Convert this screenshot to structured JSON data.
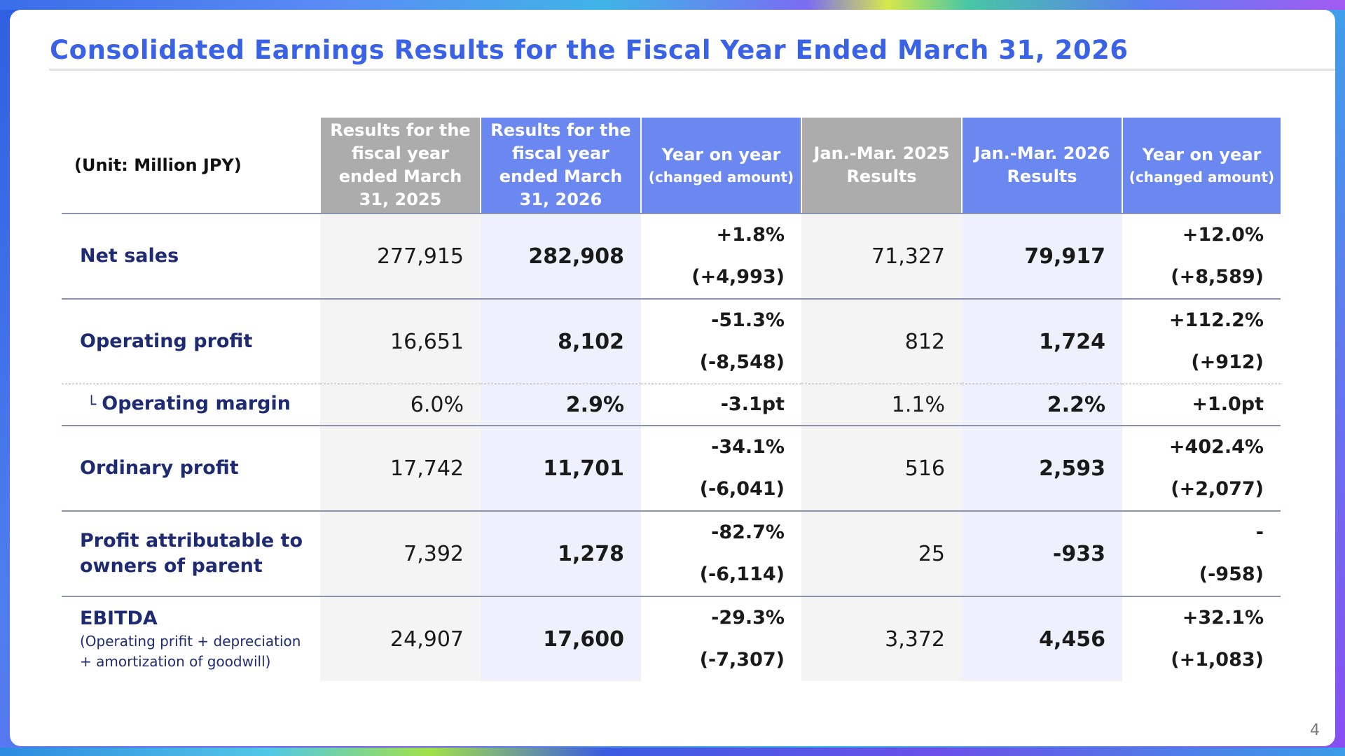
{
  "title": "Consolidated Earnings Results for the Fiscal Year Ended March 31, 2026",
  "page_number": "4",
  "colors": {
    "title": "#3a62e6",
    "header_gray": "#acacac",
    "header_blue": "#6b87f0",
    "label_text": "#1e2b73"
  },
  "table": {
    "unit_label": "(Unit: Million JPY)",
    "headers": [
      {
        "main": "Results for the fiscal year ended March 31, 2025",
        "sub": ""
      },
      {
        "main": "Results for the fiscal year ended March 31, 2026",
        "sub": ""
      },
      {
        "main": "Year on year",
        "sub": "(changed amount)"
      },
      {
        "main": "Jan.-Mar. 2025 Results",
        "sub": ""
      },
      {
        "main": "Jan.-Mar. 2026 Results",
        "sub": ""
      },
      {
        "main": "Year on year",
        "sub": "(changed amount)"
      }
    ],
    "rows": [
      {
        "label": "Net sales",
        "note": "",
        "fy2025": "277,915",
        "fy2026": "282,908",
        "yoy_pct": "+1.8%",
        "yoy_amt": "(+4,993)",
        "q2025": "71,327",
        "q2026": "79,917",
        "q_yoy_pct": "+12.0%",
        "q_yoy_amt": "(+8,589)"
      },
      {
        "label": "Operating profit",
        "note": "",
        "fy2025": "16,651",
        "fy2026": "8,102",
        "yoy_pct": "-51.3%",
        "yoy_amt": "(-8,548)",
        "q2025": "812",
        "q2026": "1,724",
        "q_yoy_pct": "+112.2%",
        "q_yoy_amt": "(+912)"
      },
      {
        "label": "Operating margin",
        "branch": "└",
        "fy2025": "6.0%",
        "fy2026": "2.9%",
        "yoy": "-3.1pt",
        "q2025": "1.1%",
        "q2026": "2.2%",
        "q_yoy": "+1.0pt"
      },
      {
        "label": "Ordinary profit",
        "note": "",
        "fy2025": "17,742",
        "fy2026": "11,701",
        "yoy_pct": "-34.1%",
        "yoy_amt": "(-6,041)",
        "q2025": "516",
        "q2026": "2,593",
        "q_yoy_pct": "+402.4%",
        "q_yoy_amt": "(+2,077)"
      },
      {
        "label": "Profit attributable to owners of parent",
        "note": "",
        "fy2025": "7,392",
        "fy2026": "1,278",
        "yoy_pct": "-82.7%",
        "yoy_amt": "(-6,114)",
        "q2025": "25",
        "q2026": "-933",
        "q_yoy_pct": "-",
        "q_yoy_amt": "(-958)"
      },
      {
        "label": "EBITDA",
        "note": "(Operating prifit + depreciation + amortization of goodwill)",
        "fy2025": "24,907",
        "fy2026": "17,600",
        "yoy_pct": "-29.3%",
        "yoy_amt": "(-7,307)",
        "q2025": "3,372",
        "q2026": "4,456",
        "q_yoy_pct": "+32.1%",
        "q_yoy_amt": "(+1,083)"
      }
    ]
  }
}
